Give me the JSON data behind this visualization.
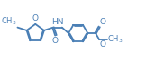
{
  "bg_color": "#ffffff",
  "line_color": "#4a7fb5",
  "bond_lw": 1.3,
  "font_size": 6.5,
  "fig_width": 1.72,
  "fig_height": 0.77,
  "dpi": 100,
  "xlim": [
    0,
    17
  ],
  "ylim": [
    0,
    7.7
  ]
}
